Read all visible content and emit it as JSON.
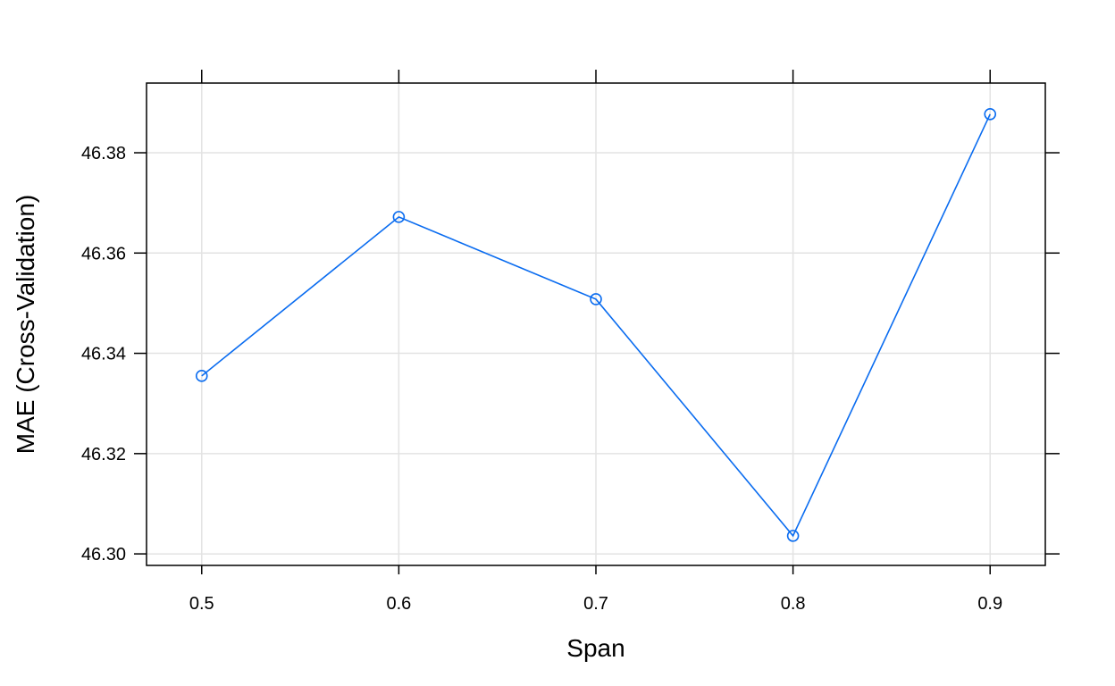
{
  "chart_data": {
    "type": "line",
    "title": "",
    "xlabel": "Span",
    "ylabel": "MAE (Cross-Validation)",
    "x": [
      0.5,
      0.6,
      0.7,
      0.8,
      0.9
    ],
    "series": [
      {
        "values": [
          46.3355,
          46.3672,
          46.3508,
          46.3036,
          46.3877
        ]
      }
    ],
    "xlim": [
      0.472,
      0.928
    ],
    "ylim": [
      46.2977,
      46.3939
    ],
    "x_ticks": [
      0.5,
      0.6,
      0.7,
      0.8,
      0.9
    ],
    "x_tick_labels": [
      "0.5",
      "0.6",
      "0.7",
      "0.8",
      "0.9"
    ],
    "y_ticks": [
      46.3,
      46.32,
      46.34,
      46.36,
      46.38
    ],
    "y_tick_labels": [
      "46.30",
      "46.32",
      "46.34",
      "46.36",
      "46.38"
    ],
    "grid": true,
    "legend": "none",
    "colors": {
      "line": "#0a6cf0",
      "grid": "#e3e3e3",
      "frame": "#000000"
    }
  }
}
